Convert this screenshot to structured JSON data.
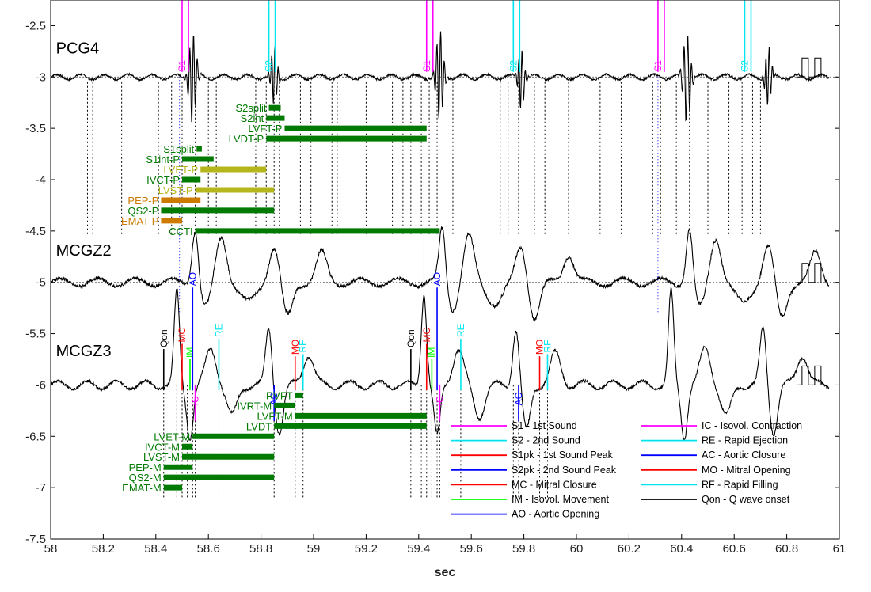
{
  "chart_data": {
    "type": "line",
    "xlabel": "sec",
    "ylabel": "",
    "xlim": [
      58,
      61
    ],
    "ylim": [
      -7.5,
      -2.25
    ],
    "xticks": [
      58,
      58.2,
      58.4,
      58.6,
      58.8,
      59,
      59.2,
      59.4,
      59.6,
      59.8,
      60,
      60.2,
      60.4,
      60.6,
      60.8,
      61
    ],
    "xtick_labels": [
      "58",
      "58.2",
      "58.4",
      "58.6",
      "58.8",
      "59",
      "59.2",
      "59.4",
      "59.6",
      "59.8",
      "60",
      "60.2",
      "60.4",
      "60.6",
      "60.8",
      "61"
    ],
    "yticks": [
      -2.5,
      -3,
      -3.5,
      -4,
      -4.5,
      -5,
      -5.5,
      -6,
      -6.5,
      -7,
      -7.5
    ],
    "ytick_labels": [
      "-2.5",
      "-3",
      "-3.5",
      "-4",
      "-4.5",
      "-5",
      "-5.5",
      "-6",
      "-6.5",
      "-7",
      "-7.5"
    ],
    "grid": false,
    "signals": [
      {
        "name": "PCG4",
        "baseline": -3.0,
        "label_x": 58.02,
        "label_y": -2.77
      },
      {
        "name": "MCGZ2",
        "baseline": -5.0,
        "label_x": 58.02,
        "label_y": -4.74
      },
      {
        "name": "MCGZ3",
        "baseline": -6.0,
        "label_x": 58.02,
        "label_y": -5.72
      }
    ],
    "pcg_markers": [
      {
        "label": "S1",
        "t": 58.5,
        "color": "#ff00ff"
      },
      {
        "label": "S2",
        "t": 58.83,
        "color": "#00e5ee"
      },
      {
        "label": "S1",
        "t": 59.43,
        "color": "#ff00ff"
      },
      {
        "label": "S2",
        "t": 59.76,
        "color": "#00e5ee"
      },
      {
        "label": "S1",
        "t": 60.31,
        "color": "#ff00ff"
      },
      {
        "label": "S2",
        "t": 60.64,
        "color": "#00e5ee"
      }
    ],
    "mcg_events": [
      {
        "label": "Qon",
        "t": 58.43,
        "color": "#000000"
      },
      {
        "label": "MC",
        "t": 58.5,
        "color": "#ff0000"
      },
      {
        "label": "IM",
        "t": 58.53,
        "color": "#00ff00"
      },
      {
        "label": "IC",
        "t": 58.55,
        "color": "#ff00ff"
      },
      {
        "label": "RE",
        "t": 58.64,
        "color": "#00e5ee"
      },
      {
        "label": "AO",
        "t": 58.54,
        "color": "#0000ff"
      },
      {
        "label": "AC",
        "t": 58.85,
        "color": "#0000ff"
      },
      {
        "label": "MO",
        "t": 58.93,
        "color": "#ff0000"
      },
      {
        "label": "RF",
        "t": 58.96,
        "color": "#00e5ee"
      },
      {
        "label": "Qon",
        "t": 59.37,
        "color": "#000000"
      },
      {
        "label": "MC",
        "t": 59.43,
        "color": "#ff0000"
      },
      {
        "label": "IM",
        "t": 59.45,
        "color": "#00ff00"
      },
      {
        "label": "IC",
        "t": 59.48,
        "color": "#ff00ff"
      },
      {
        "label": "AO",
        "t": 59.47,
        "color": "#0000ff"
      },
      {
        "label": "RE",
        "t": 59.56,
        "color": "#00e5ee"
      },
      {
        "label": "AC",
        "t": 59.78,
        "color": "#0000ff"
      },
      {
        "label": "MO",
        "t": 59.86,
        "color": "#ff0000"
      },
      {
        "label": "RF",
        "t": 59.89,
        "color": "#00e5ee"
      }
    ],
    "intervals_p": [
      {
        "label": "S2split",
        "y": -3.3,
        "start": 58.83,
        "end": 58.875,
        "color": "#007a00",
        "label_color": "#007a00"
      },
      {
        "label": "S2int",
        "y": -3.4,
        "start": 58.82,
        "end": 58.89,
        "color": "#007a00",
        "label_color": "#007a00"
      },
      {
        "label": "LVFT-P",
        "y": -3.5,
        "start": 58.89,
        "end": 59.43,
        "color": "#007a00",
        "label_color": "#007a00"
      },
      {
        "label": "LVDT-P",
        "y": -3.6,
        "start": 58.82,
        "end": 59.43,
        "color": "#007a00",
        "label_color": "#007a00"
      },
      {
        "label": "S1split",
        "y": -3.7,
        "start": 58.555,
        "end": 58.575,
        "color": "#007a00",
        "label_color": "#007a00"
      },
      {
        "label": "S1int-P",
        "y": -3.8,
        "start": 58.5,
        "end": 58.62,
        "color": "#007a00",
        "label_color": "#007a00"
      },
      {
        "label": "LVET-P",
        "y": -3.9,
        "start": 58.57,
        "end": 58.82,
        "color": "#b5b51c",
        "label_color": "#b5b51c"
      },
      {
        "label": "IVCT-P",
        "y": -4.0,
        "start": 58.5,
        "end": 58.57,
        "color": "#007a00",
        "label_color": "#007a00"
      },
      {
        "label": "LVST-P",
        "y": -4.1,
        "start": 58.55,
        "end": 58.85,
        "color": "#b5b51c",
        "label_color": "#b5b51c"
      },
      {
        "label": "PEP-P",
        "y": -4.2,
        "start": 58.42,
        "end": 58.57,
        "color": "#cc7a00",
        "label_color": "#cc7a00"
      },
      {
        "label": "QS2-P",
        "y": -4.3,
        "start": 58.42,
        "end": 58.85,
        "color": "#007a00",
        "label_color": "#007a00"
      },
      {
        "label": "EMAT-P",
        "y": -4.4,
        "start": 58.42,
        "end": 58.5,
        "color": "#cc7a00",
        "label_color": "#cc7a00"
      },
      {
        "label": "CCTI",
        "y": -4.5,
        "start": 58.55,
        "end": 59.48,
        "color": "#007a00",
        "label_color": "#007a00"
      }
    ],
    "intervals_m": [
      {
        "label": "RVFT",
        "y": -6.1,
        "start": 58.93,
        "end": 58.96
      },
      {
        "label": "IVRT-M",
        "y": -6.2,
        "start": 58.85,
        "end": 58.93
      },
      {
        "label": "LVFT-M",
        "y": -6.3,
        "start": 58.93,
        "end": 59.43
      },
      {
        "label": "LVDT",
        "y": -6.4,
        "start": 58.85,
        "end": 59.43
      },
      {
        "label": "LVET-M",
        "y": -6.5,
        "start": 58.54,
        "end": 58.85
      },
      {
        "label": "IVCT-M",
        "y": -6.6,
        "start": 58.5,
        "end": 58.54
      },
      {
        "label": "LVST-M",
        "y": -6.7,
        "start": 58.5,
        "end": 58.85
      },
      {
        "label": "PEP-M",
        "y": -6.8,
        "start": 58.43,
        "end": 58.54
      },
      {
        "label": "QS2-M",
        "y": -6.9,
        "start": 58.43,
        "end": 58.85
      },
      {
        "label": "EMAT-M",
        "y": -7.0,
        "start": 58.43,
        "end": 58.5
      }
    ],
    "legend": [
      {
        "label": "S1 - 1st Sound",
        "color": "#ff00ff"
      },
      {
        "label": "S2 - 2nd Sound",
        "color": "#00e5ee"
      },
      {
        "label": "S1pk - 1st Sound Peak",
        "color": "#ff0000"
      },
      {
        "label": "S2pk - 2nd Sound Peak",
        "color": "#0000ff"
      },
      {
        "label": "MC - Mitral Closure",
        "color": "#ff0000"
      },
      {
        "label": "IM - Isovol. Movement",
        "color": "#00ff00"
      },
      {
        "label": "AO - Aortic Opening",
        "color": "#0000ff"
      },
      {
        "label": "IC - Isovol. Contraction",
        "color": "#ff00ff"
      },
      {
        "label": "RE - Rapid Ejection",
        "color": "#00e5ee"
      },
      {
        "label": "AC - Aortic Closure",
        "color": "#0000ff"
      },
      {
        "label": "MO - Mitral Opening",
        "color": "#ff0000"
      },
      {
        "label": "RF - Rapid Filling",
        "color": "#00e5ee"
      },
      {
        "label": "Qon - Q wave onset",
        "color": "#000000"
      }
    ],
    "legend_placement": "bottom-right",
    "beats": [
      58.43,
      59.37,
      60.31
    ],
    "colors": {
      "pcg_marker_s1": "#ff00ff",
      "pcg_marker_s2": "#00e5ee",
      "interval_green": "#007a00"
    }
  }
}
